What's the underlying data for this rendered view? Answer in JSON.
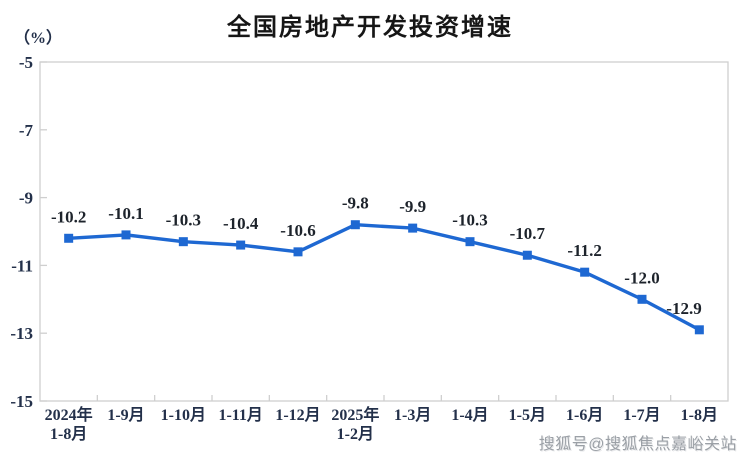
{
  "page": {
    "title": "全国房地产开发投资增速",
    "unit_label": "（%）",
    "watermark": "搜狐号@搜狐焦点嘉峪关站"
  },
  "chart_data": {
    "type": "line",
    "title": "全国房地产开发投资增速",
    "ylabel": "（%）",
    "categories": [
      "2024年\n1-8月",
      "1-9月",
      "1-10月",
      "1-11月",
      "1-12月",
      "2025年\n1-2月",
      "1-3月",
      "1-4月",
      "1-5月",
      "1-6月",
      "1-7月",
      "1-8月"
    ],
    "values": [
      -10.2,
      -10.1,
      -10.3,
      -10.4,
      -10.6,
      -9.8,
      -9.9,
      -10.3,
      -10.7,
      -11.2,
      -12.0,
      -12.9
    ],
    "data_labels": [
      "-10.2",
      "-10.1",
      "-10.3",
      "-10.4",
      "-10.6",
      "-9.8",
      "-9.9",
      "-10.3",
      "-10.7",
      "-11.2",
      "-12.0",
      "-12.9"
    ],
    "yticks": [
      -5,
      -7,
      -9,
      -11,
      -13,
      -15
    ],
    "ylim": [
      -15,
      -5
    ],
    "grid": false,
    "legend": "none",
    "line_color": "#1e68d2",
    "border_color": "#cfcfcf",
    "marker": "square"
  }
}
